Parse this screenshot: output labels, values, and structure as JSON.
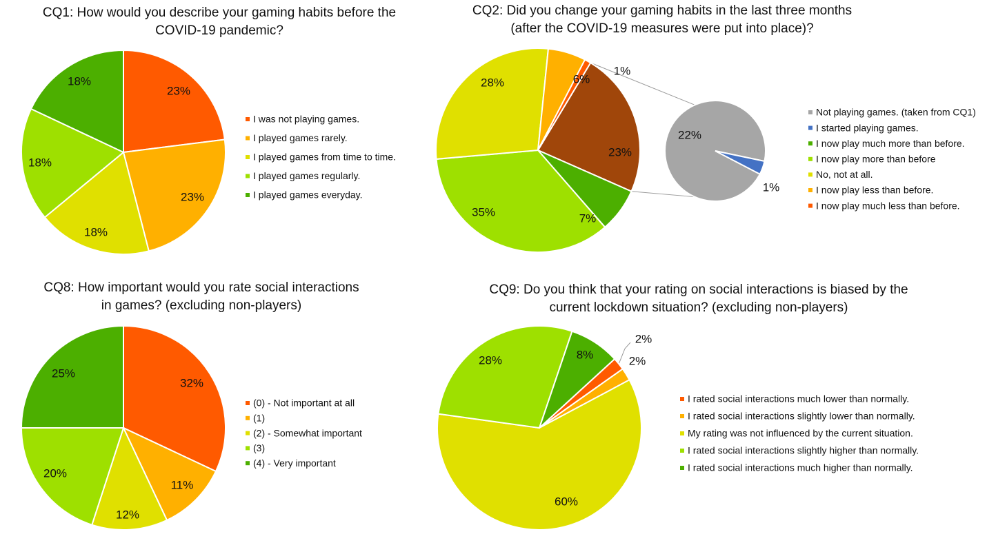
{
  "chart_data": [
    {
      "id": "cq1",
      "type": "pie",
      "title": [
        "CQ1: How would you describe your gaming habits before the",
        "COVID-19 pandemic?"
      ],
      "legend": [
        "I was not playing games.",
        "I played games rarely.",
        "I played games from time to time.",
        "I played games regularly.",
        "I played games everyday."
      ],
      "values": [
        23,
        23,
        18,
        18,
        18
      ],
      "labels": [
        "23%",
        "23%",
        "18%",
        "18%",
        "18%"
      ],
      "colors": [
        "#ff5a00",
        "#ffb000",
        "#e0e000",
        "#9ee000",
        "#4caf00"
      ]
    },
    {
      "id": "cq2",
      "type": "pie",
      "subtype": "pie-of-pie",
      "title": [
        "CQ2: Did you change your gaming habits in the last three months",
        "(after the COVID-19 measures were put into place)?"
      ],
      "legend": [
        "Not playing games. (taken from CQ1)",
        "I started playing games.",
        "I now play much more than before.",
        "I now play more than before",
        "No, not at all.",
        "I now play less than before.",
        "I now play much less than before."
      ],
      "legend_colors": [
        "#a6a6a6",
        "#4472c4",
        "#4caf00",
        "#9ee000",
        "#e0e000",
        "#ffb000",
        "#ff5a00"
      ],
      "values": [
        23,
        7,
        35,
        28,
        6,
        1
      ],
      "labels": [
        "23%",
        "7%",
        "35%",
        "28%",
        "6%",
        "1%"
      ],
      "colors": [
        "#a0460a",
        "#4caf00",
        "#9ee000",
        "#e0e000",
        "#ffb000",
        "#ff5a00"
      ],
      "secondary": {
        "values": [
          22,
          1
        ],
        "labels": [
          "22%",
          "1%"
        ],
        "colors": [
          "#a6a6a6",
          "#4472c4"
        ]
      }
    },
    {
      "id": "cq8",
      "type": "pie",
      "title": [
        "CQ8: How important would you rate social interactions",
        "in games? (excluding non-players)"
      ],
      "legend": [
        "(0) - Not important at all",
        "(1)",
        "(2) - Somewhat important",
        "(3)",
        "(4) - Very important"
      ],
      "values": [
        32,
        11,
        12,
        20,
        25
      ],
      "labels": [
        "32%",
        "11%",
        "12%",
        "20%",
        "25%"
      ],
      "colors": [
        "#ff5a00",
        "#ffb000",
        "#e0e000",
        "#9ee000",
        "#4caf00"
      ]
    },
    {
      "id": "cq9",
      "type": "pie",
      "title": [
        "CQ9: Do you think that your rating on social interactions is biased by the",
        "current lockdown situation? (excluding non-players)"
      ],
      "legend": [
        "I rated social interactions much lower than normally.",
        "I rated social interactions slightly lower than normally.",
        "My rating was not influenced by the current situation.",
        "I rated social interactions slightly higher than normally.",
        "I rated social interactions much higher than normally."
      ],
      "values": [
        2,
        2,
        60,
        28,
        8
      ],
      "labels": [
        "2%",
        "2%",
        "60%",
        "28%",
        "8%"
      ],
      "colors": [
        "#ff5a00",
        "#ffb000",
        "#e0e000",
        "#9ee000",
        "#4caf00"
      ]
    }
  ]
}
